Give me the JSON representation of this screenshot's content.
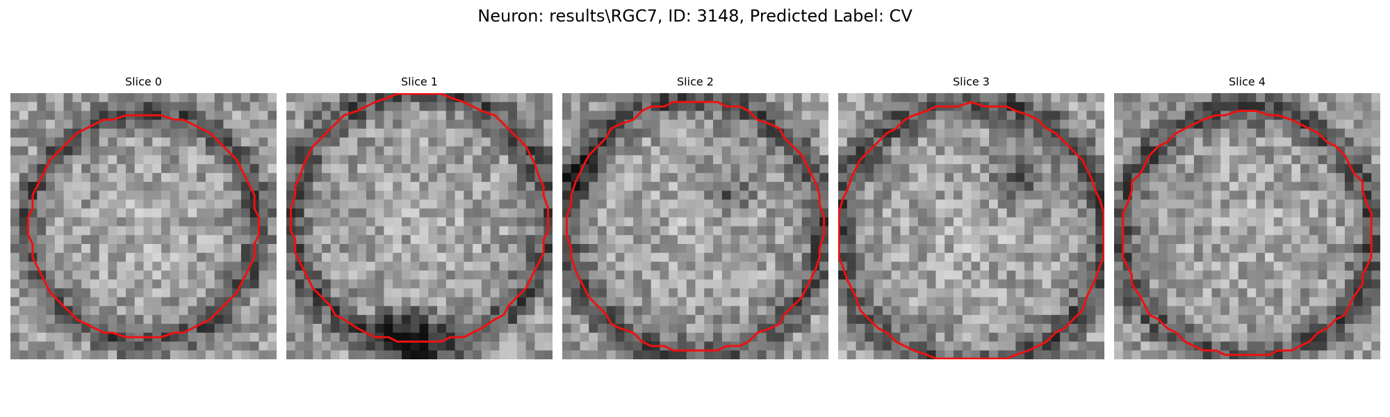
{
  "figure": {
    "title": "Neuron: results\\RGC7, ID: 3148, Predicted Label: CV"
  },
  "panels": [
    {
      "title": "Slice 0",
      "seed": 11,
      "center": [
        0.5,
        0.5
      ],
      "radius": 0.43,
      "clip": "none",
      "dark_blobs": []
    },
    {
      "title": "Slice 1",
      "seed": 23,
      "center": [
        0.5,
        0.47
      ],
      "radius": 0.48,
      "clip": "top",
      "dark_blobs": [
        [
          0.5,
          0.92,
          0.1
        ],
        [
          0.4,
          0.9,
          0.08
        ]
      ]
    },
    {
      "title": "Slice 2",
      "seed": 37,
      "center": [
        0.5,
        0.5
      ],
      "radius": 0.48,
      "clip": "none",
      "dark_blobs": [
        [
          0.62,
          0.38,
          0.08
        ],
        [
          0.05,
          0.3,
          0.07
        ]
      ]
    },
    {
      "title": "Slice 3",
      "seed": 41,
      "center": [
        0.5,
        0.53
      ],
      "radius": 0.5,
      "clip": "bottom",
      "dark_blobs": [
        [
          0.66,
          0.32,
          0.09
        ]
      ]
    },
    {
      "title": "Slice 4",
      "seed": 53,
      "center": [
        0.5,
        0.53
      ],
      "radius": 0.47,
      "clip": "bottom",
      "dark_blobs": []
    }
  ],
  "style": {
    "contour_color": "#ee1111"
  }
}
